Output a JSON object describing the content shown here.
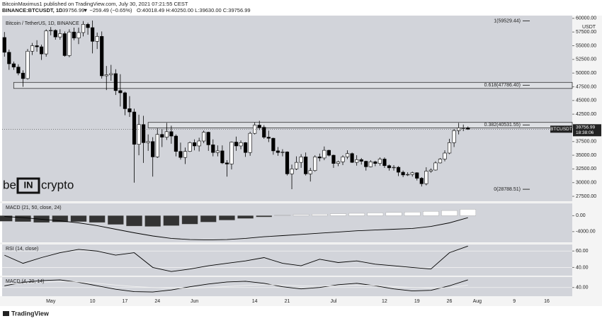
{
  "header": {
    "author": "BitcoinMaximus1 published on TradingView.com, July 30, 2021 07:21:55 CEST",
    "symbol": "BINANCE:BTCUSDT, 1D",
    "last": "39756.99",
    "change": "▼ −259.49 (−0.65%)",
    "ohlc": "O:40018.49 H:40250.00 L:39630.00 C:39756.99"
  },
  "logo": {
    "left": "be",
    "mid": "IN",
    "right": "crypto"
  },
  "footer": "TradingView",
  "chart_data": [
    {
      "type": "candlestick",
      "title": "Bitcoin / TetherUS, 1D, BINANCE",
      "y_unit": "USDT",
      "colors": {
        "up": "#ffffff",
        "down": "#000000"
      },
      "categories": [
        null,
        null,
        null,
        null,
        null,
        null,
        null,
        null,
        null,
        null,
        "May",
        null,
        null,
        null,
        null,
        null,
        null,
        null,
        null,
        "10",
        null,
        null,
        null,
        null,
        null,
        null,
        "17",
        null,
        null,
        null,
        null,
        null,
        null,
        "24",
        null,
        null,
        null,
        null,
        null,
        null,
        null,
        "Jun",
        null,
        null,
        null,
        null,
        null,
        null,
        null,
        null,
        null,
        null,
        null,
        null,
        "14",
        null,
        null,
        null,
        null,
        null,
        null,
        "21",
        null,
        null,
        null,
        null,
        null,
        null,
        null,
        null,
        null,
        "Jul",
        null,
        null,
        null,
        null,
        null,
        null,
        null,
        null,
        null,
        null,
        "12",
        null,
        null,
        null,
        null,
        null,
        null,
        "19",
        null,
        null,
        null,
        null,
        null,
        null,
        "26",
        null,
        null,
        null,
        null,
        null,
        "Aug",
        null,
        null,
        null,
        null,
        null,
        null,
        null,
        "9",
        null,
        null,
        null,
        null,
        null,
        null,
        "16",
        null,
        null,
        null,
        null,
        null
      ],
      "open": [
        56500,
        53800,
        51700,
        51100,
        50000,
        49000,
        54000,
        55000,
        54800,
        53500,
        57700,
        57800,
        56600,
        57200,
        53200,
        57500,
        56400,
        57400,
        58900,
        58300,
        55800,
        56700,
        49500,
        49700,
        49900,
        46800,
        46400,
        43500,
        42900,
        37000,
        40600,
        37300,
        37500,
        34700,
        38800,
        38300,
        39300,
        38500,
        35700,
        34600,
        35700,
        37300,
        36700,
        37600,
        39200,
        36900,
        35500,
        35800,
        33600,
        33400,
        37400,
        36700,
        37300,
        35500,
        39000,
        40500,
        40100,
        38300,
        38100,
        35800,
        35500,
        35600,
        31600,
        32500,
        33700,
        34700,
        31600,
        32200,
        34700,
        34500,
        35900,
        35000,
        33500,
        33800,
        34700,
        35300,
        33700,
        34200,
        33900,
        32900,
        33800,
        33500,
        34300,
        33100,
        32700,
        32800,
        31900,
        31400,
        31500,
        31800,
        30800,
        29800,
        32100,
        32300,
        33600,
        34300,
        35400,
        37300,
        39500,
        40000,
        40018.49,
        null,
        null,
        null,
        null,
        null,
        null,
        null,
        null,
        null,
        null,
        null,
        null,
        null,
        null,
        null,
        null,
        null,
        null,
        null,
        null,
        null,
        null
      ],
      "high": [
        57500,
        54300,
        52100,
        51600,
        50500,
        54400,
        55500,
        56000,
        55200,
        58000,
        58400,
        58000,
        58000,
        57600,
        58000,
        58300,
        58300,
        59500,
        59200,
        59600,
        57400,
        57600,
        51300,
        51500,
        50700,
        49800,
        46600,
        45800,
        43500,
        42400,
        42200,
        38800,
        38300,
        39900,
        39800,
        40900,
        40400,
        38800,
        37300,
        36400,
        37500,
        37900,
        38200,
        39500,
        39300,
        37900,
        36800,
        36800,
        34100,
        37500,
        38400,
        37700,
        37400,
        39300,
        41000,
        41300,
        40500,
        39500,
        38200,
        36500,
        36100,
        35700,
        33300,
        34800,
        35200,
        35500,
        32700,
        35000,
        35300,
        36600,
        36000,
        35100,
        34000,
        35000,
        35900,
        35500,
        35000,
        34500,
        34000,
        34100,
        34000,
        34600,
        34600,
        33300,
        33200,
        33000,
        32200,
        31900,
        32000,
        31900,
        31000,
        32800,
        32600,
        33900,
        34500,
        35900,
        38000,
        39800,
        40900,
        40600,
        40250,
        null,
        null,
        null,
        null,
        null,
        null,
        null,
        null,
        null,
        null,
        null,
        null,
        null,
        null,
        null,
        null,
        null,
        null,
        null,
        null,
        null,
        null
      ],
      "low": [
        53000,
        50600,
        50600,
        49600,
        47500,
        48800,
        53300,
        53900,
        52400,
        53000,
        56900,
        56100,
        56100,
        53000,
        52900,
        56000,
        55300,
        56700,
        57000,
        53600,
        54400,
        49000,
        46900,
        48600,
        46000,
        43900,
        42300,
        42000,
        30000,
        35000,
        33600,
        35800,
        31100,
        34500,
        36500,
        37800,
        37100,
        34800,
        34200,
        33400,
        35600,
        35900,
        35700,
        37200,
        35800,
        34800,
        34800,
        33400,
        31100,
        32400,
        35800,
        36100,
        34700,
        34900,
        38800,
        39600,
        38000,
        37400,
        35100,
        34900,
        34800,
        31300,
        28800,
        32300,
        32700,
        31300,
        30200,
        32000,
        33900,
        34100,
        34800,
        32700,
        33000,
        33200,
        34300,
        33600,
        33100,
        33300,
        32200,
        32800,
        33000,
        33100,
        32700,
        32200,
        32200,
        31200,
        31000,
        31200,
        31100,
        30400,
        29300,
        29500,
        31800,
        32200,
        33500,
        33900,
        35200,
        36500,
        38800,
        39400,
        39630,
        null,
        null,
        null,
        null,
        null,
        null,
        null,
        null,
        null,
        null,
        null,
        null,
        null,
        null,
        null,
        null,
        null,
        null,
        null,
        null,
        null,
        null
      ],
      "close": [
        53800,
        51700,
        51100,
        50000,
        49000,
        54000,
        55000,
        54800,
        53500,
        57700,
        57800,
        56600,
        57200,
        53200,
        57500,
        56400,
        57400,
        58900,
        58300,
        55800,
        56700,
        49500,
        49700,
        49900,
        46800,
        46400,
        43500,
        42900,
        37000,
        40600,
        37300,
        37500,
        34700,
        38800,
        38300,
        39300,
        38500,
        35700,
        34600,
        35700,
        37300,
        36700,
        37600,
        39200,
        36900,
        35500,
        35800,
        33600,
        33400,
        37400,
        36700,
        37300,
        35500,
        39000,
        40500,
        40100,
        38300,
        38100,
        35800,
        35500,
        35600,
        31600,
        32500,
        33700,
        34700,
        31600,
        32200,
        34700,
        34500,
        35900,
        35000,
        33500,
        33800,
        34700,
        35300,
        33700,
        34200,
        33900,
        32900,
        33800,
        33500,
        34300,
        33100,
        32700,
        32800,
        31900,
        31400,
        31500,
        31800,
        30800,
        29800,
        32100,
        32300,
        33600,
        34300,
        35400,
        37300,
        39500,
        40000,
        40000,
        39756.99,
        null,
        null,
        null,
        null,
        null,
        null,
        null,
        null,
        null,
        null,
        null,
        null,
        null,
        null,
        null,
        null,
        null,
        null,
        null,
        null,
        null,
        null
      ],
      "ylim": [
        26600,
        60500
      ],
      "yticks": [
        {
          "value": 60000,
          "label": "60000.00"
        },
        {
          "value": 57500,
          "label": "57500.00"
        },
        {
          "value": 55000,
          "label": "55000.00"
        },
        {
          "value": 52500,
          "label": "52500.00"
        },
        {
          "value": 50000,
          "label": "50000.00"
        },
        {
          "value": 47500,
          "label": "47500.00"
        },
        {
          "value": 45000,
          "label": "45000.00"
        },
        {
          "value": 42500,
          "label": "42500.00"
        },
        {
          "value": 37500,
          "label": "37500.00"
        },
        {
          "value": 35000,
          "label": "35000.00"
        },
        {
          "value": 32500,
          "label": "32500.00"
        },
        {
          "value": 30000,
          "label": "30000.00"
        },
        {
          "value": 27500,
          "label": "27500.00"
        }
      ],
      "levels": [
        {
          "value": 59529.44,
          "label": "1(59529.44)"
        },
        {
          "value": 47786.4,
          "label": "0.618(47786.40)"
        },
        {
          "value": 40531.55,
          "label": "0.382(40531.55)"
        },
        {
          "value": 28788.51,
          "label": "0(28788.51)"
        }
      ],
      "zones": [
        {
          "start": 2,
          "range": [
            47200,
            48300
          ]
        },
        {
          "start": 31,
          "range": [
            40000,
            41000
          ]
        }
      ],
      "last_price": {
        "symbol": "BTCUSDT",
        "value": 39756.99,
        "countdown": "18:38:06"
      }
    },
    {
      "type": "macd",
      "title": "MACD (21, 50, close, 24)",
      "x": [
        0,
        4,
        8,
        12,
        16,
        20,
        24,
        28,
        32,
        36,
        40,
        44,
        48,
        52,
        56,
        60,
        64,
        68,
        72,
        76,
        80,
        84,
        88,
        92,
        96,
        100
      ],
      "histogram": [
        -1400,
        -1500,
        -1700,
        -1600,
        -1500,
        -1700,
        -2200,
        -2600,
        -2700,
        -2500,
        -2100,
        -1600,
        -1100,
        -700,
        -300,
        100,
        300,
        400,
        500,
        600,
        700,
        800,
        900,
        1100,
        1300,
        1600
      ],
      "line": [
        -200,
        -500,
        -900,
        -1300,
        -1800,
        -2500,
        -3400,
        -4300,
        -5100,
        -5700,
        -6000,
        -6100,
        -6000,
        -5700,
        -5300,
        -5000,
        -4700,
        -4400,
        -4100,
        -3800,
        -3600,
        -3400,
        -3200,
        -2700,
        -1800,
        -500
      ],
      "colors": {
        "negative": "#333333",
        "positive": "#ffffff",
        "line": "#000000"
      },
      "ylim": [
        -6700,
        3100
      ],
      "yticks": [
        {
          "value": 0,
          "label": "0.00"
        },
        {
          "value": -4000,
          "label": "-4000.00"
        }
      ]
    },
    {
      "type": "line",
      "title": "RSI (14, close)",
      "x": [
        0,
        4,
        8,
        12,
        16,
        20,
        24,
        28,
        32,
        36,
        40,
        44,
        48,
        52,
        56,
        60,
        64,
        68,
        72,
        76,
        80,
        84,
        88,
        92,
        96,
        100
      ],
      "series": [
        {
          "color": "#000000",
          "values": [
            55,
            45,
            52,
            58,
            62,
            60,
            55,
            58,
            40,
            35,
            38,
            42,
            45,
            48,
            52,
            45,
            42,
            50,
            46,
            48,
            44,
            42,
            40,
            38,
            58,
            66
          ]
        }
      ],
      "ylim": [
        30,
        68
      ],
      "yticks": [
        {
          "value": 60,
          "label": "60.00"
        },
        {
          "value": 40,
          "label": "40.00"
        }
      ]
    },
    {
      "type": "line",
      "title": "MACD (4, 20, 14)",
      "x": [
        0,
        4,
        8,
        12,
        16,
        20,
        24,
        28,
        32,
        36,
        40,
        44,
        48,
        52,
        56,
        60,
        64,
        68,
        72,
        76,
        80,
        84,
        88,
        92,
        96,
        100
      ],
      "series": [
        {
          "color": "#000000",
          "values": [
            45,
            55,
            60,
            62,
            55,
            45,
            35,
            28,
            27,
            33,
            42,
            50,
            56,
            58,
            52,
            42,
            36,
            40,
            48,
            52,
            45,
            36,
            30,
            32,
            45,
            62
          ]
        },
        {
          "color": "#f0f0f0",
          "values": [
            50,
            52,
            55,
            57,
            56,
            52,
            47,
            43,
            40,
            38,
            38,
            40,
            43,
            46,
            48,
            47,
            45,
            44,
            45,
            47,
            46,
            43,
            40,
            38,
            40,
            47
          ]
        }
      ],
      "ylim": [
        15,
        70
      ],
      "yticks": [
        {
          "value": 40,
          "label": "40.00"
        }
      ]
    }
  ]
}
